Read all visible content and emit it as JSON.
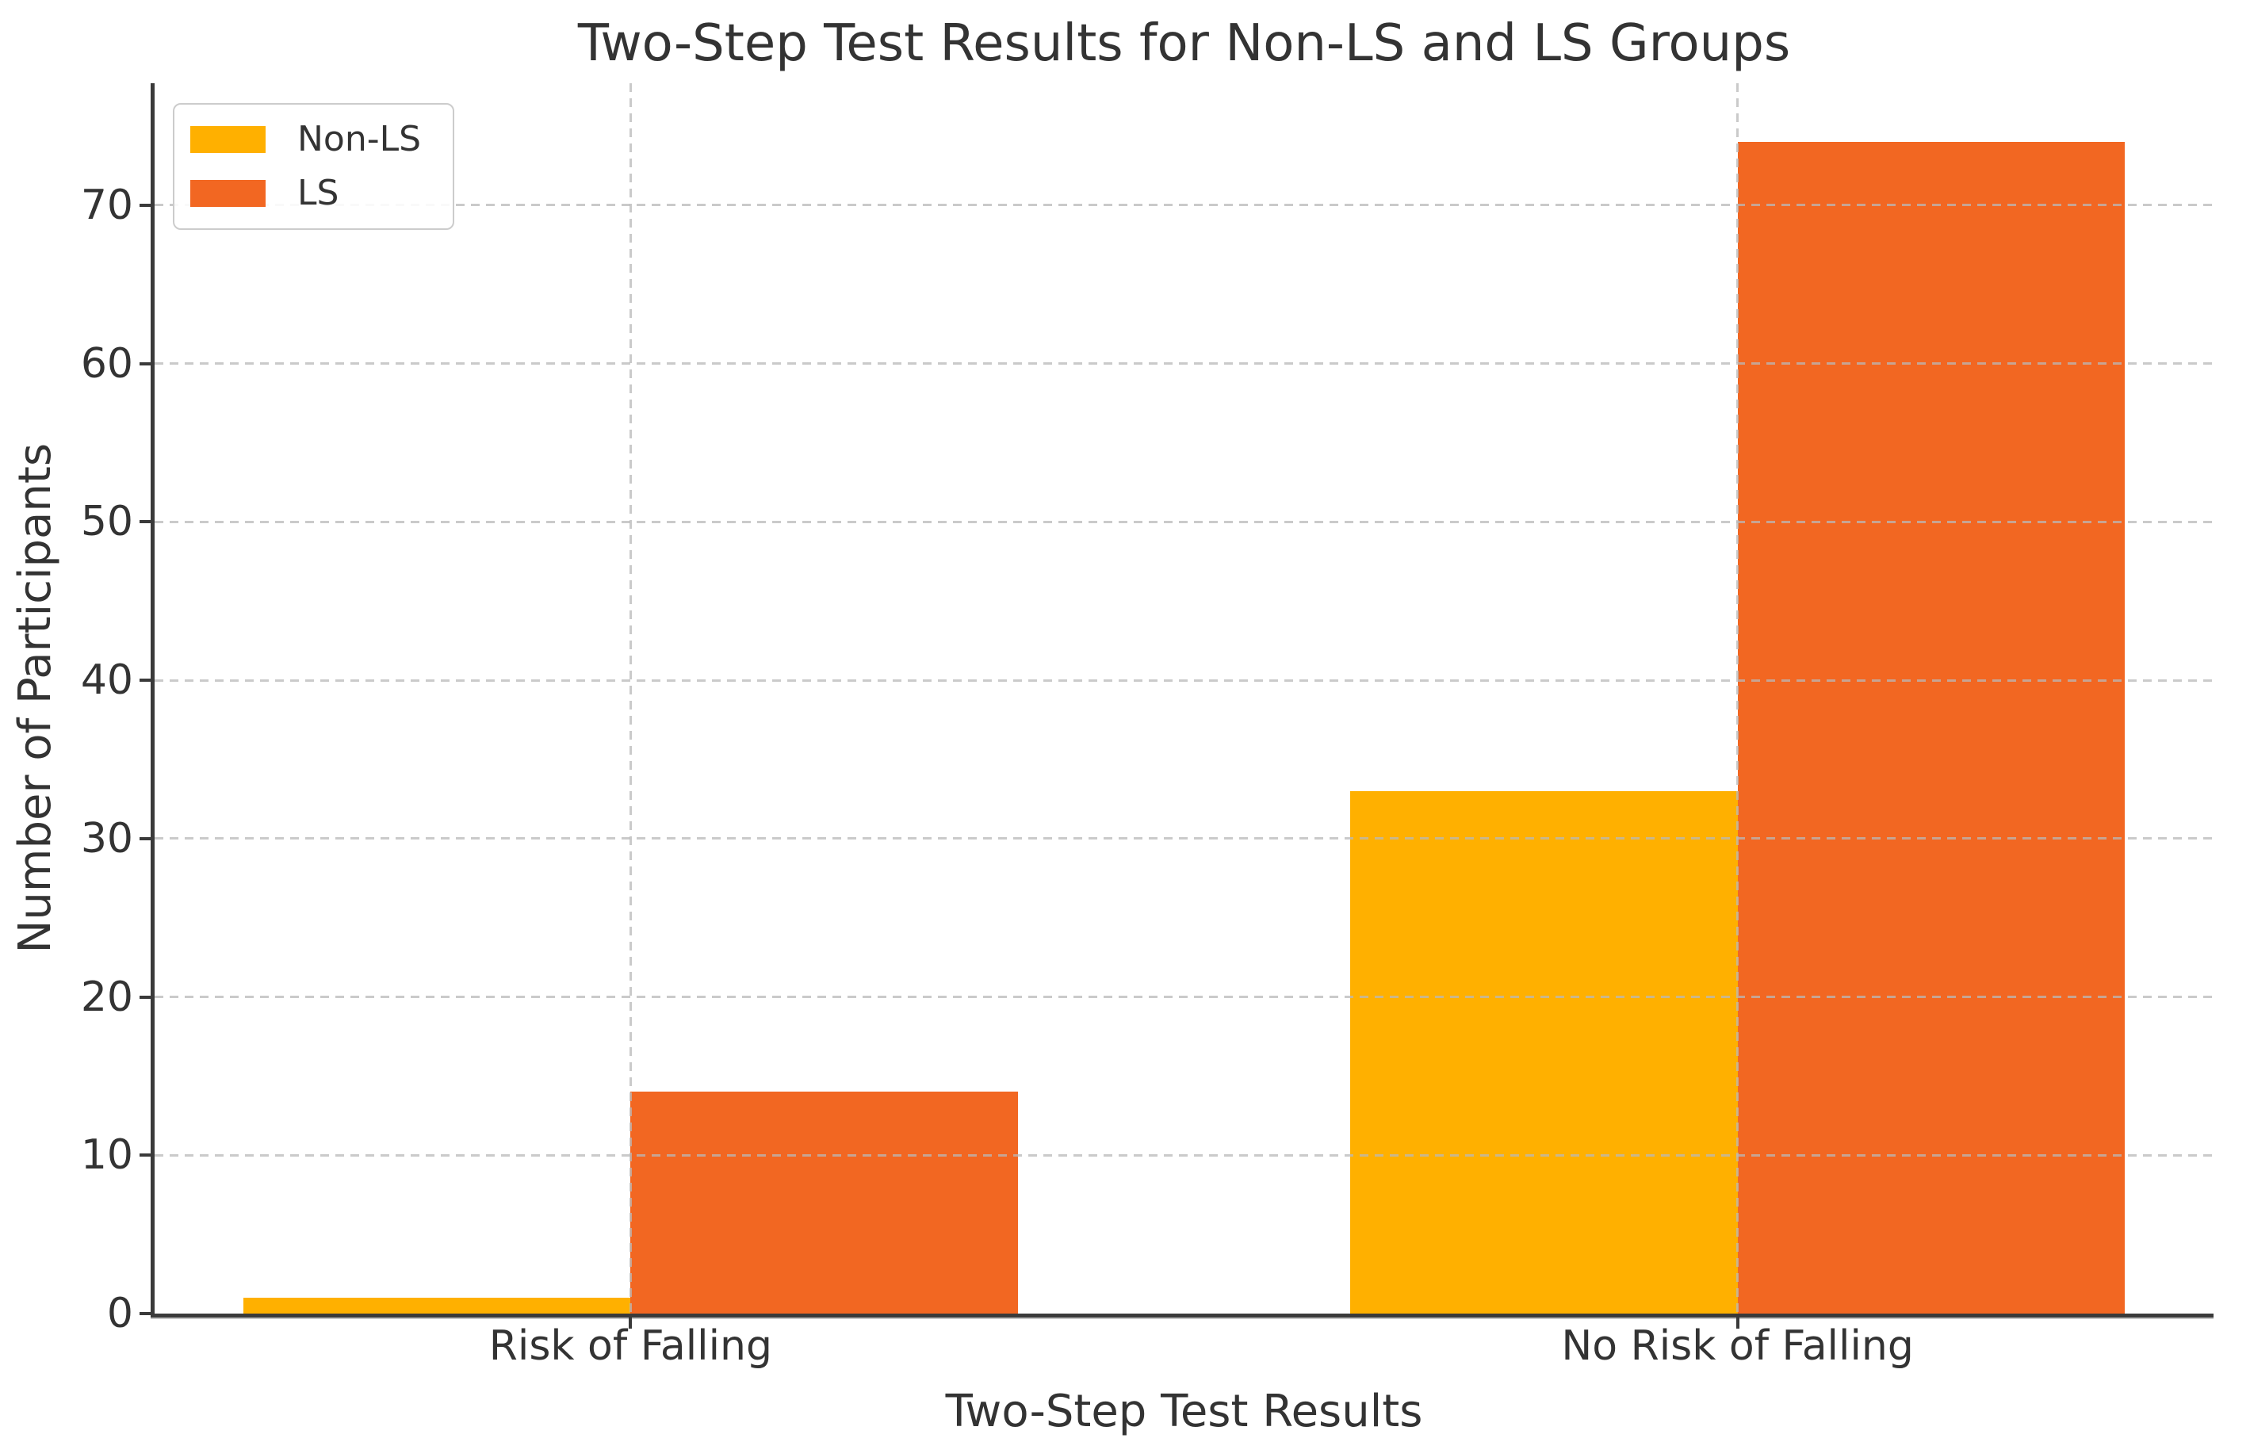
{
  "chart_data": {
    "type": "bar",
    "title": "Two-Step Test Results for Non-LS and LS Groups",
    "xlabel": "Two-Step Test Results",
    "ylabel": "Number of Participants",
    "categories": [
      "Risk of Falling",
      "No Risk of Falling"
    ],
    "series": [
      {
        "name": "Non-LS",
        "color": "#FFB000",
        "values": [
          1,
          33
        ]
      },
      {
        "name": "LS",
        "color": "#F26722",
        "values": [
          14,
          74
        ]
      }
    ],
    "yticks": [
      0,
      10,
      20,
      30,
      40,
      50,
      60,
      70
    ],
    "ylim": [
      0,
      77.7
    ],
    "xlim": [
      -0.43,
      1.43
    ],
    "bar_width": 0.35,
    "grid": {
      "show": true,
      "style": "dashed",
      "color": "#cccccc",
      "horizontal_at_yticks": true,
      "vertical_at_categories": true,
      "drawn_above_bars": true
    },
    "legend_position": "upper-left"
  },
  "colors": {
    "background": "#ffffff",
    "axis": "#3a3a3a",
    "text": "#333333",
    "grid": "#cccccc"
  }
}
